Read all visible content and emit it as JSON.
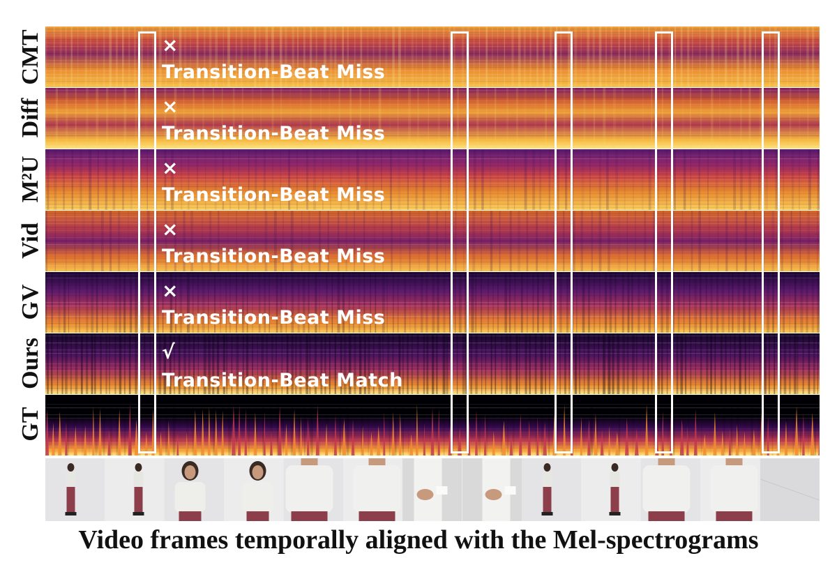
{
  "figure": {
    "rows": [
      {
        "label": "CMT",
        "mark": "×",
        "note": "Transition-Beat Miss"
      },
      {
        "label": "Diff",
        "mark": "×",
        "note": "Transition-Beat Miss"
      },
      {
        "label": "M²U",
        "mark": "×",
        "note": "Transition-Beat Miss"
      },
      {
        "label": "Vid",
        "mark": "×",
        "note": "Transition-Beat Miss"
      },
      {
        "label": "GV",
        "mark": "×",
        "note": "Transition-Beat Miss"
      },
      {
        "label": "Ours",
        "mark": "√",
        "note": "Transition-Beat Match"
      },
      {
        "label": "GT",
        "mark": "",
        "note": ""
      }
    ],
    "caption": "Video frames temporally aligned with the Mel-spectrograms",
    "colors": {
      "spectrogram_low": "#0b0522",
      "spectrogram_mid": "#8f2a5c",
      "spectrogram_high": "#f7b13a",
      "highlight": "#ffffff",
      "annotation_text": "#ffffff"
    }
  }
}
